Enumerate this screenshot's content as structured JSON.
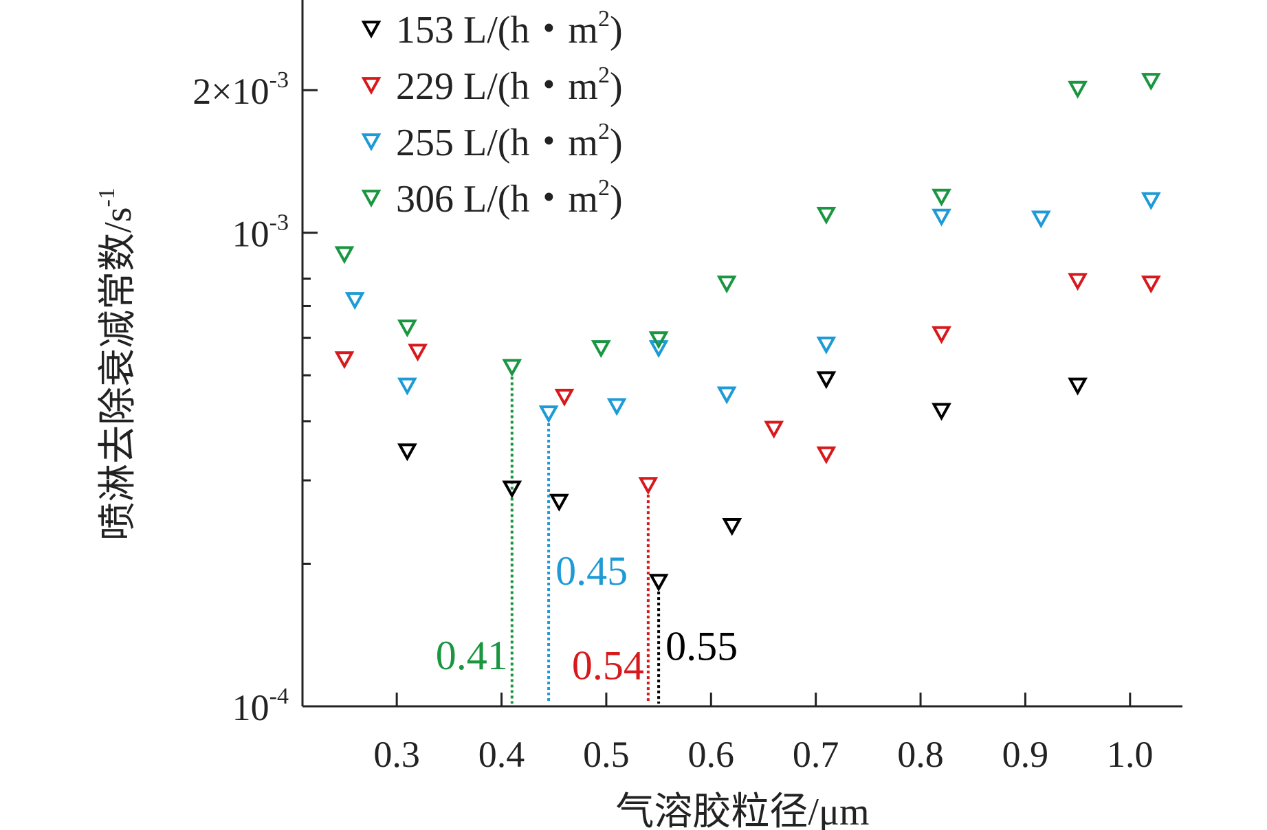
{
  "chart_data": {
    "type": "scatter",
    "xlabel": "气溶胶粒径/μm",
    "ylabel": "喷淋去除衰减常数/s",
    "ylabel_sup": "-1",
    "x_scale": "linear",
    "y_scale": "log",
    "xlim": [
      0.21,
      1.05
    ],
    "ylim": [
      0.0001,
      0.0031
    ],
    "x_ticks": [
      0.3,
      0.4,
      0.5,
      0.6,
      0.7,
      0.8,
      0.9,
      1.0
    ],
    "x_tick_labels": [
      "0.3",
      "0.4",
      "0.5",
      "0.6",
      "0.7",
      "0.8",
      "0.9",
      "1.0"
    ],
    "y_major_ticks": [
      {
        "value": 0.0001,
        "base": "10",
        "exp": "-4",
        "prefix": ""
      },
      {
        "value": 0.001,
        "base": "10",
        "exp": "-3",
        "prefix": ""
      },
      {
        "value": 0.002,
        "base": "10",
        "exp": "-3",
        "prefix": "2×"
      }
    ],
    "y_minor_ticks": [
      0.0002,
      0.0003,
      0.0004,
      0.0005,
      0.0006,
      0.0007,
      0.0008
    ],
    "legend_position": "top-left",
    "marker": "triangle-down-open",
    "series": [
      {
        "name": "153 L/(h・m²)",
        "name_main": "153 L/(h・m",
        "name_sup": "2",
        "name_tail": ")",
        "color": "#000000",
        "points": [
          {
            "x": 0.31,
            "y": 0.000345
          },
          {
            "x": 0.41,
            "y": 0.000288
          },
          {
            "x": 0.455,
            "y": 0.00027
          },
          {
            "x": 0.55,
            "y": 0.000183
          },
          {
            "x": 0.62,
            "y": 0.00024
          },
          {
            "x": 0.71,
            "y": 0.00049
          },
          {
            "x": 0.82,
            "y": 0.00042
          },
          {
            "x": 0.95,
            "y": 0.000475
          }
        ]
      },
      {
        "name": "229 L/(h・m²)",
        "name_main": "229 L/(h・m",
        "name_sup": "2",
        "name_tail": ")",
        "color": "#d7191c",
        "points": [
          {
            "x": 0.25,
            "y": 0.00054
          },
          {
            "x": 0.32,
            "y": 0.00056
          },
          {
            "x": 0.46,
            "y": 0.00045
          },
          {
            "x": 0.54,
            "y": 0.000293
          },
          {
            "x": 0.66,
            "y": 0.000385
          },
          {
            "x": 0.71,
            "y": 0.00034
          },
          {
            "x": 0.82,
            "y": 0.00061
          },
          {
            "x": 0.95,
            "y": 0.00079
          },
          {
            "x": 1.02,
            "y": 0.00078
          }
        ]
      },
      {
        "name": "255 L/(h・m²)",
        "name_main": "255 L/(h・m",
        "name_sup": "2",
        "name_tail": ")",
        "color": "#1e9ad6",
        "points": [
          {
            "x": 0.26,
            "y": 0.00072
          },
          {
            "x": 0.31,
            "y": 0.000475
          },
          {
            "x": 0.445,
            "y": 0.000415
          },
          {
            "x": 0.51,
            "y": 0.00043
          },
          {
            "x": 0.55,
            "y": 0.00057
          },
          {
            "x": 0.615,
            "y": 0.000455
          },
          {
            "x": 0.71,
            "y": 0.00058
          },
          {
            "x": 0.82,
            "y": 0.00108
          },
          {
            "x": 0.915,
            "y": 0.00107
          },
          {
            "x": 1.02,
            "y": 0.00117
          }
        ]
      },
      {
        "name": "306 L/(h・m²)",
        "name_main": "306 L/(h・m",
        "name_sup": "2",
        "name_tail": ")",
        "color": "#1a9641",
        "points": [
          {
            "x": 0.25,
            "y": 0.0009
          },
          {
            "x": 0.31,
            "y": 0.00063
          },
          {
            "x": 0.41,
            "y": 0.00052
          },
          {
            "x": 0.495,
            "y": 0.00057
          },
          {
            "x": 0.55,
            "y": 0.000595
          },
          {
            "x": 0.615,
            "y": 0.00078
          },
          {
            "x": 0.71,
            "y": 0.00109
          },
          {
            "x": 0.82,
            "y": 0.00119
          },
          {
            "x": 0.95,
            "y": 0.00201
          },
          {
            "x": 1.02,
            "y": 0.00209
          }
        ]
      }
    ],
    "annotations": [
      {
        "text": "0.41",
        "x": 0.41,
        "y_top": 0.00052,
        "color": "#1a9641",
        "label_side": "left",
        "label_y": 0.000128
      },
      {
        "text": "0.45",
        "x": 0.445,
        "y_top": 0.000415,
        "color": "#1e9ad6",
        "label_side": "right",
        "label_y": 0.000193
      },
      {
        "text": "0.54",
        "x": 0.54,
        "y_top": 0.000293,
        "color": "#d7191c",
        "label_side": "left",
        "label_y": 0.000122
      },
      {
        "text": "0.55",
        "x": 0.55,
        "y_top": 0.000183,
        "color": "#000000",
        "label_side": "right",
        "label_y": 0.000134
      }
    ]
  }
}
